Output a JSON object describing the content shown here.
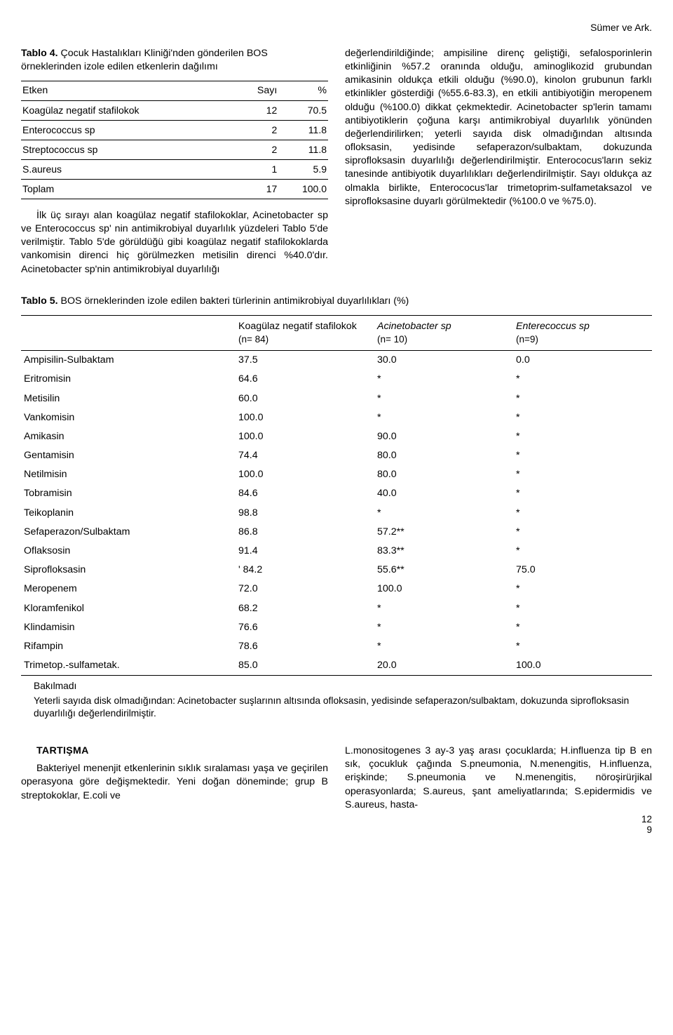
{
  "running_head": "Sümer ve Ark.",
  "table4": {
    "caption_label": "Tablo 4.",
    "caption_text": " Çocuk Hastalıkları Kliniği'nden gönderilen BOS örneklerinden izole edilen etkenlerin dağılımı",
    "columns": {
      "etken": "Etken",
      "sayi": "Sayı",
      "pct": "%"
    },
    "rows": [
      {
        "etken": "Koagülaz negatif stafilokok",
        "sayi": "12",
        "pct": "70.5"
      },
      {
        "etken": "Enterococcus sp",
        "sayi": "2",
        "pct": "11.8"
      },
      {
        "etken": "Streptococcus sp",
        "sayi": "2",
        "pct": "11.8"
      },
      {
        "etken": "S.aureus",
        "sayi": "1",
        "pct": "5.9"
      },
      {
        "etken": "Toplam",
        "sayi": "17",
        "pct": "100.0"
      }
    ]
  },
  "left_para": "İlk üç sırayı alan koagülaz negatif stafilokoklar, Acinetobacter sp ve Enterococcus sp' nin antimikrobiyal duyarlılık yüzdeleri Tablo 5'de verilmiştir. Tablo 5'de görüldüğü gibi koagülaz negatif stafilokoklarda vankomisin direnci hiç görülmezken metisilin direnci %40.0'dır. Acinetobacter sp'nin antimikrobiyal duyarlılığı",
  "right_para": "değerlendirildiğinde; ampisiline direnç geliştiği, sefalosporinlerin etkinliğinin %57.2 oranında olduğu, aminoglikozid grubundan amikasinin oldukça etkili olduğu (%90.0), kinolon grubunun farklı etkinlikler gösterdiği (%55.6-83.3), en etkili antibiyotiğin meropenem olduğu (%100.0) dikkat çekmektedir. Acinetobacter sp'lerin tamamı antibiyotiklerin çoğuna karşı antimikrobiyal duyarlılık yönünden değerlendirilirken; yeterli sayıda disk olmadığından altısında ofloksasin, yedisinde sefaperazon/sulbaktam, dokuzunda siprofloksasin duyarlılığı değerlendirilmiştir. Enterococus'ların sekiz tanesinde antibiyotik duyarlılıkları değerlendirilmiştir. Sayı oldukça az olmakla birlikte, Enterococus'lar trimetoprim-sulfametaksazol ve siprofloksasine duyarlı görülmektedir (%100.0 ve %75.0).",
  "table5": {
    "caption_label": "Tablo 5.",
    "caption_text": " BOS örneklerinden izole edilen bakteri türlerinin antimikrobiyal duyarlılıkları (%)",
    "headers": {
      "c1_top": "Koagülaz negatif stafilokok",
      "c1_sub": "(n= 84)",
      "c2_top": "Acinetobacter sp",
      "c2_sub": "(n= 10)",
      "c3_top": "Enterecoccus sp",
      "c3_sub": "(n=9)"
    },
    "rows": [
      {
        "name": "Ampisilin-Sulbaktam",
        "c1": "37.5",
        "c2": "30.0",
        "c3": "0.0"
      },
      {
        "name": "Eritromisin",
        "c1": "64.6",
        "c2": "*",
        "c3": "*"
      },
      {
        "name": "Metisilin",
        "c1": "60.0",
        "c2": "*",
        "c3": "*"
      },
      {
        "name": "Vankomisin",
        "c1": "100.0",
        "c2": "*",
        "c3": "*"
      },
      {
        "name": "Amikasin",
        "c1": "100.0",
        "c2": "90.0",
        "c3": "*"
      },
      {
        "name": "Gentamisin",
        "c1": "74.4",
        "c2": "80.0",
        "c3": "*"
      },
      {
        "name": "Netilmisin",
        "c1": "100.0",
        "c2": "80.0",
        "c3": "*"
      },
      {
        "name": "Tobramisin",
        "c1": "84.6",
        "c2": "40.0",
        "c3": "*"
      },
      {
        "name": "Teikoplanin",
        "c1": "98.8",
        "c2": "*",
        "c3": "*"
      },
      {
        "name": "Sefaperazon/Sulbaktam",
        "c1": "86.8",
        "c2": "57.2**",
        "c3": "*"
      },
      {
        "name": "Oflaksosin",
        "c1": "91.4",
        "c2": "83.3**",
        "c3": "*"
      },
      {
        "name": "Siprofloksasin",
        "c1": "' 84.2",
        "c2": "55.6**",
        "c3": "75.0"
      },
      {
        "name": "Meropenem",
        "c1": "72.0",
        "c2": "100.0",
        "c3": "*"
      },
      {
        "name": "Kloramfenikol",
        "c1": "68.2",
        "c2": "*",
        "c3": "*"
      },
      {
        "name": "Klindamisin",
        "c1": "76.6",
        "c2": "*",
        "c3": "*"
      },
      {
        "name": "Rifampin",
        "c1": "78.6",
        "c2": "*",
        "c3": "*"
      },
      {
        "name": "Trimetop.-sulfametak.",
        "c1": "85.0",
        "c2": "20.0",
        "c3": "100.0"
      }
    ],
    "note1": "Bakılmadı",
    "note2": "Yeterli sayıda disk olmadığından: Acinetobacter suşlarının altısında ofloksasin, yedisinde sefaperazon/sulbaktam, dokuzunda siprofloksasin duyarlılığı değerlendirilmiştir."
  },
  "tartisma": {
    "heading": "TARTIŞMA",
    "left": "Bakteriyel menenjit etkenlerinin sıklık sıralaması yaşa ve geçirilen operasyona göre değişmektedir. Yeni doğan döneminde; grup B streptokoklar, E.coli ve",
    "right": "L.monositogenes 3 ay-3 yaş arası çocuklarda; H.influenza tip B en sık, çocukluk çağında S.pneumonia, N.menengitis, H.influenza, erişkinde; S.pneumonia ve N.menengitis, nöroşirürjikal operasyonlarda; S.aureus, şant ameliyatlarında; S.epidermidis ve S.aureus, hasta-"
  },
  "page_number_top": "12",
  "page_number_bottom": "9"
}
